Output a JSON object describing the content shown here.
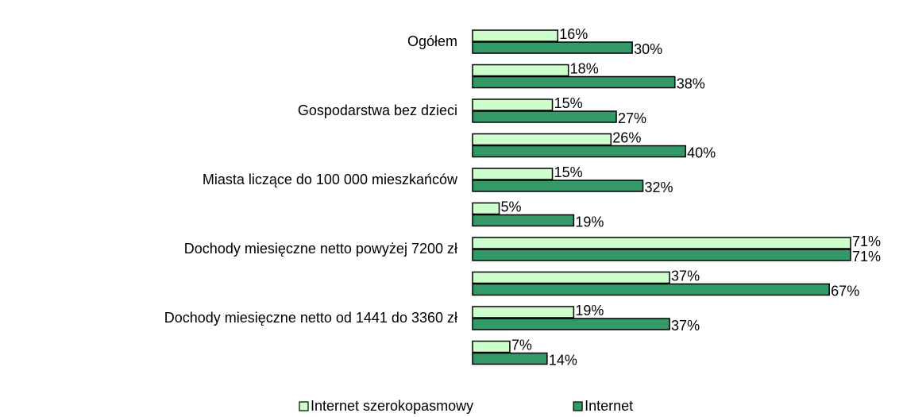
{
  "chart_data": {
    "type": "hbar",
    "categories": [
      "Ogółem",
      null,
      "Gospodarstwa bez dzieci",
      null,
      "Miasta liczące do 100 000 mieszkańców",
      null,
      "Dochody miesięczne netto powyżej 7200 zł",
      null,
      "Dochody miesięczne netto od 1441 do 3360 zł",
      null
    ],
    "series": [
      {
        "name": "Internet szerokopasmowy",
        "color": "#ccffcc",
        "values": [
          16,
          18,
          15,
          26,
          15,
          5,
          71,
          37,
          19,
          7
        ],
        "value_labels": [
          "16%",
          "18%",
          "15%",
          "26%",
          "15%",
          "5%",
          "71%",
          "37%",
          "19%",
          "7%"
        ]
      },
      {
        "name": "Internet",
        "color": "#339966",
        "values": [
          30,
          38,
          27,
          40,
          32,
          19,
          71,
          67,
          37,
          14
        ],
        "value_labels": [
          "30%",
          "38%",
          "27%",
          "40%",
          "32%",
          "19%",
          "71%",
          "67%",
          "37%",
          "14%"
        ]
      }
    ],
    "legend": "bottom"
  }
}
